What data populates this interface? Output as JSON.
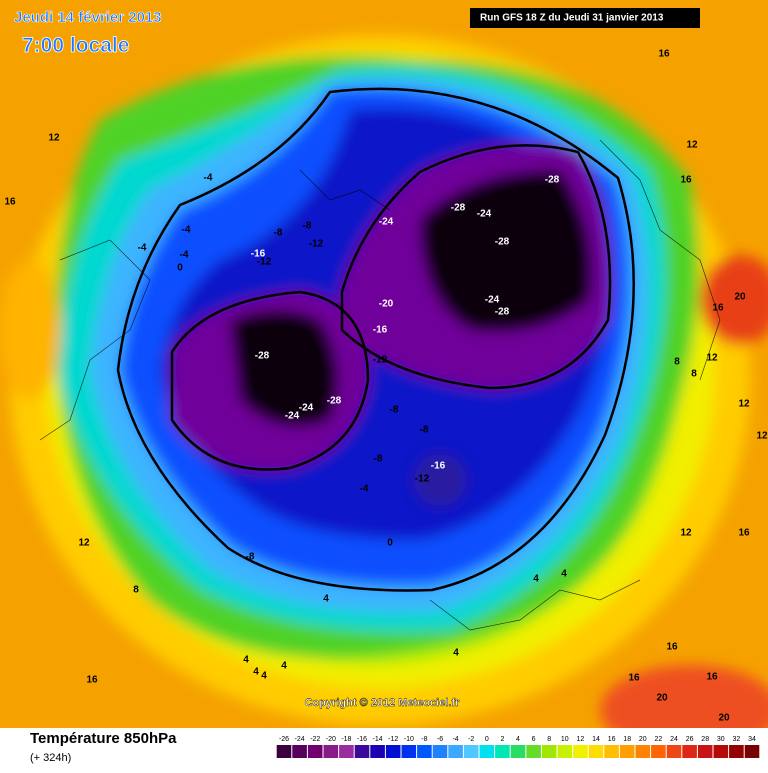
{
  "header": {
    "date": "Jeudi 14 février 2013",
    "time": "7:00 locale",
    "run": "Run GFS 18 Z du Jeudi 31 janvier 2013"
  },
  "copyright": "Copyright © 2012 Meteociel.fr",
  "legend": {
    "title": "Température 850hPa",
    "subtitle": "(+ 324h)",
    "scale": [
      -26,
      -24,
      -22,
      -20,
      -18,
      -16,
      -14,
      -12,
      -10,
      -8,
      -6,
      -4,
      -2,
      0,
      2,
      4,
      6,
      8,
      10,
      12,
      14,
      16,
      18,
      20,
      22,
      24,
      26,
      28,
      30,
      32,
      34
    ],
    "colors": [
      "#3a0040",
      "#55005a",
      "#700070",
      "#861c86",
      "#9a2ca0",
      "#3c0a9a",
      "#1e00b4",
      "#0010d2",
      "#0032f0",
      "#0058ff",
      "#1e82ff",
      "#3ca8ff",
      "#50c8ff",
      "#00e0f0",
      "#00e6b4",
      "#28dc64",
      "#64dc28",
      "#a0e600",
      "#c8f000",
      "#f0f000",
      "#ffdc00",
      "#ffbe00",
      "#ffa000",
      "#ff8200",
      "#ff6400",
      "#f04614",
      "#dc2814",
      "#c81414",
      "#b40a0a",
      "#960000",
      "#780000"
    ]
  },
  "contour_labels": [
    -28,
    -28,
    -24,
    -24,
    -28,
    -24,
    -28,
    -20,
    -16,
    -12,
    -28,
    -24,
    -24,
    -28,
    -8,
    -8,
    -8,
    -16,
    -12,
    -4,
    -8,
    0,
    -4,
    -8,
    -8,
    -12,
    -16,
    -12,
    -4,
    -4,
    -4,
    0,
    12,
    16,
    16,
    12,
    16,
    20,
    16,
    8,
    12,
    8,
    12,
    12,
    12,
    16,
    4,
    4,
    4,
    4,
    8,
    12,
    4,
    4,
    4,
    4,
    16,
    16,
    16,
    16,
    20,
    20
  ]
}
